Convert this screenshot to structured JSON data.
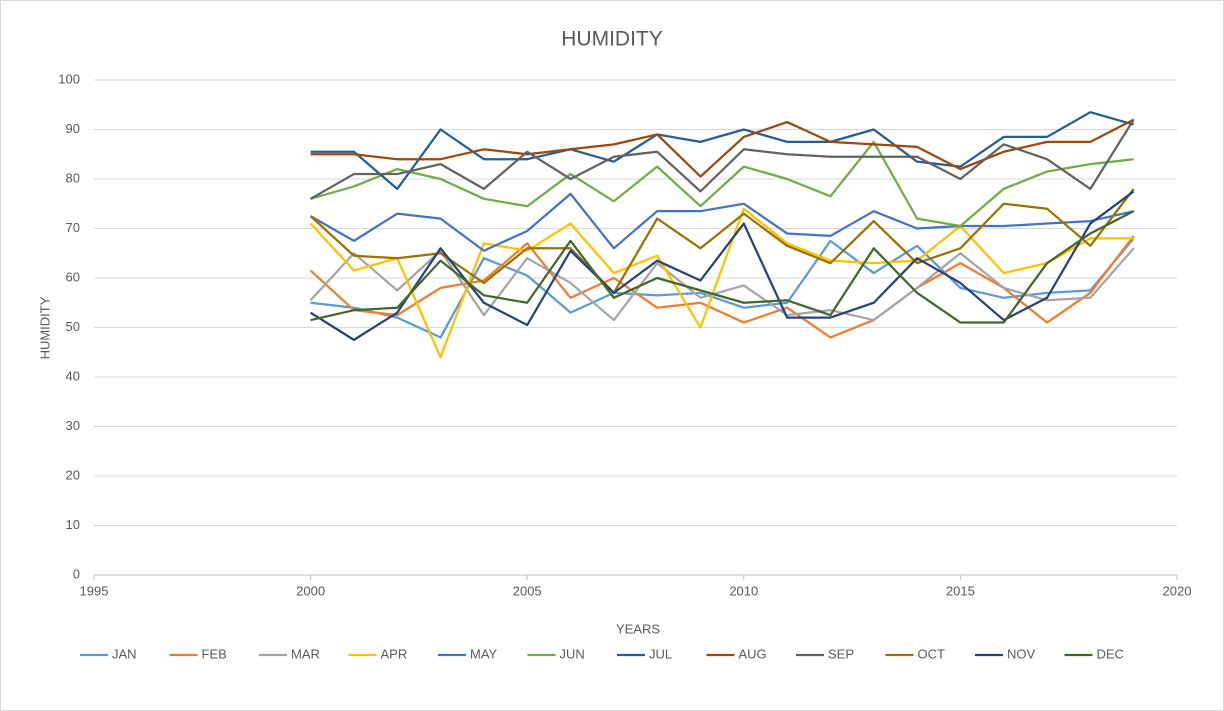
{
  "chart_data": {
    "type": "line",
    "title": "HUMIDITY",
    "x_label": "YEARS",
    "y_label": "HUMIDITY",
    "x": [
      2000,
      2001,
      2002,
      2003,
      2004,
      2005,
      2006,
      2007,
      2008,
      2009,
      2010,
      2011,
      2012,
      2013,
      2014,
      2015,
      2016,
      2017,
      2018,
      2019
    ],
    "xlim": [
      1995,
      2020
    ],
    "xticks": [
      1995,
      2000,
      2005,
      2010,
      2015,
      2020
    ],
    "ylim": [
      0,
      100
    ],
    "yticks": [
      0,
      10,
      20,
      30,
      40,
      50,
      60,
      70,
      80,
      90,
      100
    ],
    "grid": true,
    "legend": "bottom",
    "series": [
      {
        "name": "JAN",
        "color": "#5b9bd5",
        "values": [
          55,
          54,
          52,
          48,
          64,
          60.5,
          53,
          57,
          56.5,
          57,
          54,
          55,
          67.5,
          61,
          66.5,
          58,
          56,
          57,
          57.5,
          68
        ]
      },
      {
        "name": "FEB",
        "color": "#ed7d31",
        "values": [
          61.5,
          53.5,
          52.5,
          58,
          59.5,
          67,
          56,
          60,
          54,
          55,
          51,
          54,
          48,
          51.5,
          58,
          63,
          58,
          51,
          57,
          68.5
        ]
      },
      {
        "name": "MAR",
        "color": "#a5a5a5",
        "values": [
          55.5,
          65,
          57.5,
          65.5,
          52.5,
          64,
          59,
          51.5,
          63,
          56,
          58.5,
          52.5,
          53.5,
          51.5,
          58,
          65,
          58,
          55.5,
          56,
          66
        ]
      },
      {
        "name": "APR",
        "color": "#ffc000",
        "values": [
          71,
          61.5,
          64,
          44,
          67,
          65.5,
          71,
          61,
          64.5,
          50,
          74,
          67,
          63.5,
          63,
          63.5,
          70.5,
          61,
          63,
          68,
          68
        ]
      },
      {
        "name": "MAY",
        "color": "#4472c4",
        "values": [
          72.5,
          67.5,
          73,
          72,
          65.5,
          69.5,
          77,
          66,
          73.5,
          73.5,
          75,
          69,
          68.5,
          73.5,
          70,
          70.5,
          70.5,
          71,
          71.5,
          73.5
        ]
      },
      {
        "name": "JUN",
        "color": "#70ad47",
        "values": [
          76,
          78.5,
          82,
          80,
          76,
          74.5,
          81,
          75.5,
          82.5,
          74.5,
          82.5,
          80,
          76.5,
          87.5,
          72,
          70.5,
          78,
          81.5,
          83,
          84
        ]
      },
      {
        "name": "JUL",
        "color": "#255e91",
        "values": [
          85.5,
          85.5,
          78,
          90,
          84,
          84,
          86,
          83.5,
          89,
          87.5,
          90,
          87.5,
          87.5,
          90,
          83.5,
          82.5,
          88.5,
          88.5,
          93.5,
          91
        ]
      },
      {
        "name": "AUG",
        "color": "#9e480e",
        "values": [
          85,
          85,
          84,
          84,
          86,
          85,
          86,
          87,
          89,
          80.5,
          88.5,
          91.5,
          87.5,
          87,
          86.5,
          82,
          85.5,
          87.5,
          87.5,
          92
        ]
      },
      {
        "name": "SEP",
        "color": "#636363",
        "values": [
          76,
          81,
          81,
          83,
          78,
          85.5,
          80,
          84.5,
          85.5,
          77.5,
          86,
          85,
          84.5,
          84.5,
          84.5,
          80,
          87,
          84,
          78,
          92
        ]
      },
      {
        "name": "OCT",
        "color": "#997300",
        "values": [
          72.5,
          64.5,
          64,
          65,
          59,
          66,
          66,
          57,
          72,
          66,
          73,
          66.5,
          63,
          71.5,
          63,
          66,
          75,
          74,
          66.5,
          78
        ]
      },
      {
        "name": "NOV",
        "color": "#264478",
        "values": [
          53,
          47.5,
          53,
          66,
          55,
          50.5,
          65.5,
          57,
          63.5,
          59.5,
          71,
          52,
          52,
          55,
          64,
          59,
          51.5,
          56,
          71,
          77.5
        ]
      },
      {
        "name": "DEC",
        "color": "#43682b",
        "values": [
          51.5,
          53.5,
          54,
          63.5,
          56.5,
          55,
          67.5,
          56,
          60,
          57.5,
          55,
          55.5,
          52.5,
          66,
          57,
          51,
          51,
          63,
          69,
          73.5
        ]
      }
    ]
  }
}
